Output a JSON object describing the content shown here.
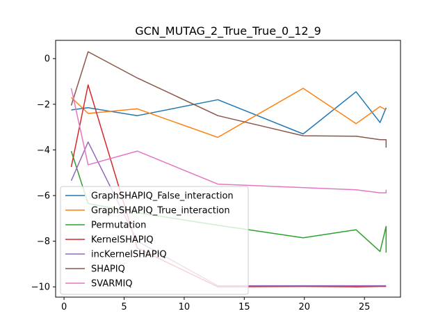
{
  "chart_data": {
    "type": "line",
    "title": "GCN_MUTAG_2_True_True_0_12_9",
    "xlabel": "",
    "ylabel": "",
    "xlim": [
      -0.7,
      28.0
    ],
    "ylim": [
      -10.45,
      0.8
    ],
    "xticks": [
      0,
      5,
      10,
      15,
      20,
      25
    ],
    "yticks": [
      0,
      -2,
      -4,
      -6,
      -8,
      -10
    ],
    "grid": false,
    "legend_position": "lower-left",
    "series": [
      {
        "name": "GraphSHAPIQ_False_interaction",
        "color": "#1f77b4",
        "x": [
          0.6,
          2.0,
          6.1,
          12.8,
          19.9,
          24.3,
          26.3,
          26.8
        ],
        "y": [
          -2.25,
          -2.15,
          -2.5,
          -1.8,
          -3.3,
          -1.45,
          -2.8,
          -2.15
        ]
      },
      {
        "name": "GraphSHAPIQ_True_interaction",
        "color": "#ff7f0e",
        "x": [
          0.6,
          2.0,
          6.1,
          12.8,
          19.9,
          24.3,
          26.3,
          26.8
        ],
        "y": [
          -1.7,
          -2.4,
          -2.2,
          -3.45,
          -1.3,
          -2.85,
          -2.1,
          -2.25
        ]
      },
      {
        "name": "Permutation",
        "color": "#2ca02c",
        "x": [
          0.6,
          2.0,
          6.1,
          12.8,
          19.9,
          24.3,
          26.3,
          26.8,
          26.8
        ],
        "y": [
          -4.05,
          -6.35,
          -6.75,
          -7.3,
          -7.85,
          -7.5,
          -8.45,
          -7.35,
          -8.5
        ]
      },
      {
        "name": "KernelSHAPIQ",
        "color": "#d62728",
        "x": [
          0.6,
          2.0,
          6.1,
          12.8,
          19.9,
          24.3,
          26.3,
          26.8
        ],
        "y": [
          -4.75,
          -1.15,
          -8.3,
          -10.0,
          -9.98,
          -10.0,
          -9.98,
          -9.98
        ]
      },
      {
        "name": "incKernelSHAPIQ",
        "color": "#9467bd",
        "x": [
          0.6,
          2.0,
          6.1,
          12.8,
          19.9,
          24.3,
          26.3,
          26.8
        ],
        "y": [
          -5.35,
          -3.65,
          -8.0,
          -9.95,
          -9.95,
          -9.95,
          -9.95,
          -9.95
        ]
      },
      {
        "name": "SHAPIQ",
        "color": "#8c564b",
        "x": [
          0.6,
          2.0,
          6.1,
          12.8,
          19.9,
          24.3,
          26.3,
          26.8,
          26.8
        ],
        "y": [
          -2.05,
          0.3,
          -0.85,
          -2.5,
          -3.38,
          -3.4,
          -3.55,
          -3.55,
          -3.9
        ]
      },
      {
        "name": "SVARMIQ",
        "color": "#e377c2",
        "x": [
          0.6,
          2.0,
          6.1,
          12.8,
          19.9,
          24.3,
          26.3,
          26.8,
          26.8
        ],
        "y": [
          -1.3,
          -4.65,
          -4.05,
          -5.5,
          -5.65,
          -5.75,
          -5.88,
          -5.88,
          -5.75
        ]
      }
    ]
  }
}
